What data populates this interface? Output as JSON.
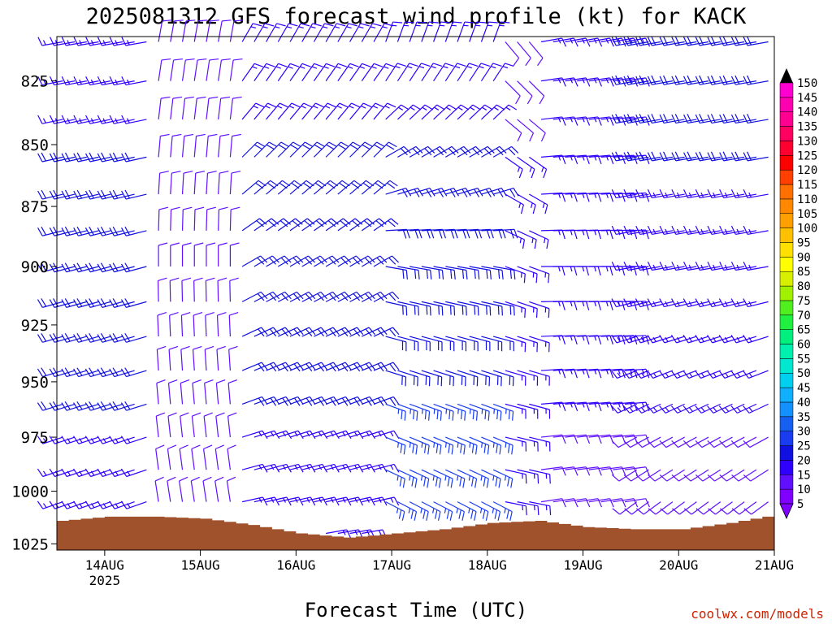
{
  "chart_data": {
    "type": "wind-barb-profile",
    "title": "2025081312 GFS forecast wind profile (kt) for KACK",
    "xlabel": "Forecast Time (UTC)",
    "ylabel": "",
    "credit": "coolwx.com/models",
    "y_axis": {
      "scale": "log",
      "ylim": [
        1028,
        808
      ],
      "ticks": [
        825,
        850,
        875,
        900,
        925,
        950,
        975,
        1000,
        1025
      ]
    },
    "x_axis": {
      "xlim": [
        "2025-08-13T12:00",
        "2025-08-21T00:00"
      ],
      "ticks": [
        {
          "t": "2025-08-14T00:00",
          "label": "14AUG",
          "sublabel": "2025"
        },
        {
          "t": "2025-08-15T00:00",
          "label": "15AUG",
          "sublabel": ""
        },
        {
          "t": "2025-08-16T00:00",
          "label": "16AUG",
          "sublabel": ""
        },
        {
          "t": "2025-08-17T00:00",
          "label": "17AUG",
          "sublabel": ""
        },
        {
          "t": "2025-08-18T00:00",
          "label": "18AUG",
          "sublabel": ""
        },
        {
          "t": "2025-08-19T00:00",
          "label": "19AUG",
          "sublabel": ""
        },
        {
          "t": "2025-08-20T00:00",
          "label": "20AUG",
          "sublabel": ""
        },
        {
          "t": "2025-08-21T00:00",
          "label": "21AUG",
          "sublabel": ""
        }
      ]
    },
    "colorbar": {
      "unit": "kt",
      "levels": [
        5,
        10,
        15,
        20,
        25,
        30,
        35,
        40,
        45,
        50,
        55,
        60,
        65,
        70,
        75,
        80,
        85,
        90,
        95,
        100,
        105,
        110,
        115,
        120,
        125,
        130,
        135,
        140,
        145,
        150
      ],
      "colors": [
        "#7f00ff",
        "#6010ff",
        "#3000ff",
        "#1010e0",
        "#1a3cf0",
        "#1560f0",
        "#1590ff",
        "#10b0ff",
        "#00d0f0",
        "#00e8d0",
        "#00f0b0",
        "#00f080",
        "#20f040",
        "#50f020",
        "#a0f000",
        "#d8f000",
        "#ffff00",
        "#ffe000",
        "#ffc000",
        "#ffa000",
        "#ff8800",
        "#ff7000",
        "#ff4000",
        "#ff0000",
        "#ff0030",
        "#ff0060",
        "#ff0090",
        "#ff00b0",
        "#ff00d0",
        "#ff00ff"
      ]
    },
    "terrain_color": "#a0522d",
    "surface_pressure": {
      "times": [
        "2025-08-13T12:00",
        "2025-08-14T00:00",
        "2025-08-14T12:00",
        "2025-08-15T00:00",
        "2025-08-15T12:00",
        "2025-08-16T00:00",
        "2025-08-16T12:00",
        "2025-08-17T00:00",
        "2025-08-17T12:00",
        "2025-08-18T00:00",
        "2025-08-18T12:00",
        "2025-08-19T00:00",
        "2025-08-19T12:00",
        "2025-08-20T00:00",
        "2025-08-20T12:00",
        "2025-08-21T00:00"
      ],
      "hPa": [
        1014,
        1012,
        1012,
        1013,
        1016,
        1020,
        1022,
        1020,
        1018,
        1015,
        1014,
        1017,
        1018,
        1018,
        1015,
        1011
      ]
    },
    "wind_levels_hPa": [
      810,
      825,
      840,
      855,
      870,
      885,
      900,
      915,
      930,
      945,
      960,
      975,
      990,
      1005,
      1020
    ],
    "wind_segments": [
      {
        "from": "2025-08-13T12:00",
        "to": "2025-08-14T12:00",
        "profile": [
          {
            "p": 810,
            "dir": 260,
            "spd": 15
          },
          {
            "p": 900,
            "dir": 255,
            "spd": 20
          },
          {
            "p": 1020,
            "dir": 250,
            "spd": 15
          }
        ]
      },
      {
        "from": "2025-08-14T12:00",
        "to": "2025-08-15T09:00",
        "profile": [
          {
            "p": 810,
            "dir": 10,
            "spd": 10
          },
          {
            "p": 900,
            "dir": 360,
            "spd": 10
          },
          {
            "p": 1020,
            "dir": 350,
            "spd": 10
          }
        ]
      },
      {
        "from": "2025-08-15T09:00",
        "to": "2025-08-16T21:00",
        "profile": [
          {
            "p": 810,
            "dir": 30,
            "spd": 15
          },
          {
            "p": 900,
            "dir": 60,
            "spd": 20
          },
          {
            "p": 1020,
            "dir": 80,
            "spd": 15
          }
        ]
      },
      {
        "from": "2025-08-16T21:00",
        "to": "2025-08-18T03:00",
        "profile": [
          {
            "p": 810,
            "dir": 20,
            "spd": 15
          },
          {
            "p": 900,
            "dir": 100,
            "spd": 20
          },
          {
            "p": 1020,
            "dir": 120,
            "spd": 25
          }
        ]
      },
      {
        "from": "2025-08-18T03:00",
        "to": "2025-08-18T12:00",
        "profile": [
          {
            "p": 810,
            "dir": 140,
            "spd": 10
          },
          {
            "p": 900,
            "dir": 110,
            "spd": 15
          },
          {
            "p": 1020,
            "dir": 100,
            "spd": 15
          }
        ]
      },
      {
        "from": "2025-08-18T12:00",
        "to": "2025-08-19T12:00",
        "profile": [
          {
            "p": 810,
            "dir": 80,
            "spd": 15
          },
          {
            "p": 900,
            "dir": 90,
            "spd": 15
          },
          {
            "p": 1020,
            "dir": 80,
            "spd": 10
          }
        ]
      },
      {
        "from": "2025-08-19T12:00",
        "to": "2025-08-21T00:00",
        "profile": [
          {
            "p": 810,
            "dir": 260,
            "spd": 20
          },
          {
            "p": 900,
            "dir": 260,
            "spd": 15
          },
          {
            "p": 1020,
            "dir": 230,
            "spd": 10
          }
        ]
      }
    ]
  }
}
